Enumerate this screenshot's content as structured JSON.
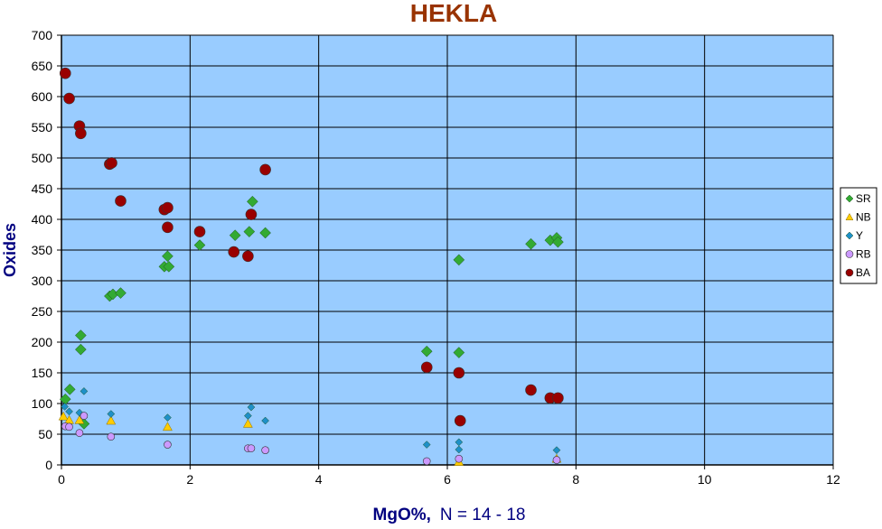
{
  "chart_data": {
    "type": "scatter",
    "title": "HEKLA",
    "xlabel_main": "MgO%,",
    "xlabel_note": "N = 14 - 18",
    "ylabel": "Oxides",
    "xlim": [
      0,
      12
    ],
    "ylim": [
      0,
      700
    ],
    "x_ticks": [
      "0",
      "2",
      "4",
      "6",
      "8",
      "10",
      "12"
    ],
    "y_ticks": [
      "0",
      "50",
      "100",
      "150",
      "200",
      "250",
      "300",
      "350",
      "400",
      "450",
      "500",
      "550",
      "600",
      "650",
      "700"
    ],
    "grid": true,
    "legend_position": "right",
    "plot_background": "#99CCFF",
    "series": [
      {
        "name": "SR",
        "marker": "diamond",
        "color": "#33AA33",
        "points": [
          [
            0.06,
            107
          ],
          [
            0.13,
            123
          ],
          [
            0.3,
            211
          ],
          [
            0.3,
            188
          ],
          [
            0.35,
            67
          ],
          [
            0.75,
            275
          ],
          [
            0.8,
            278
          ],
          [
            0.92,
            280
          ],
          [
            1.6,
            323
          ],
          [
            1.65,
            340
          ],
          [
            1.67,
            323
          ],
          [
            2.15,
            358
          ],
          [
            2.7,
            374
          ],
          [
            2.92,
            380
          ],
          [
            2.97,
            429
          ],
          [
            3.17,
            378
          ],
          [
            5.68,
            185
          ],
          [
            6.18,
            183
          ],
          [
            6.18,
            334
          ],
          [
            7.3,
            360
          ],
          [
            7.6,
            366
          ],
          [
            7.7,
            370
          ],
          [
            7.72,
            363
          ]
        ]
      },
      {
        "name": "NB",
        "marker": "triangle",
        "color": "#FFCC00",
        "points": [
          [
            0.03,
            79
          ],
          [
            0.12,
            73
          ],
          [
            0.28,
            73
          ],
          [
            0.77,
            72
          ],
          [
            1.65,
            62
          ],
          [
            2.9,
            67
          ],
          [
            6.18,
            5
          ],
          [
            7.7,
            10
          ]
        ]
      },
      {
        "name": "Y",
        "marker": "diamond",
        "color": "#1E90C8",
        "points": [
          [
            0.05,
            95
          ],
          [
            0.12,
            87
          ],
          [
            0.28,
            85
          ],
          [
            0.35,
            120
          ],
          [
            0.77,
            83
          ],
          [
            1.65,
            77
          ],
          [
            2.9,
            80
          ],
          [
            2.95,
            94
          ],
          [
            3.17,
            72
          ],
          [
            5.68,
            33
          ],
          [
            6.18,
            37
          ],
          [
            6.18,
            25
          ],
          [
            7.7,
            24
          ]
        ]
      },
      {
        "name": "RB",
        "marker": "circle",
        "color": "#CC99FF",
        "points": [
          [
            0.06,
            63
          ],
          [
            0.12,
            62
          ],
          [
            0.28,
            52
          ],
          [
            0.35,
            80
          ],
          [
            0.77,
            46
          ],
          [
            1.65,
            33
          ],
          [
            2.9,
            27
          ],
          [
            2.95,
            27
          ],
          [
            3.17,
            24
          ],
          [
            5.68,
            6
          ],
          [
            6.18,
            10
          ],
          [
            7.7,
            8
          ]
        ]
      },
      {
        "name": "BA",
        "marker": "circle",
        "color": "#990000",
        "points": [
          [
            0.06,
            638
          ],
          [
            0.12,
            597
          ],
          [
            0.28,
            552
          ],
          [
            0.3,
            540
          ],
          [
            0.75,
            490
          ],
          [
            0.78,
            492
          ],
          [
            0.92,
            430
          ],
          [
            1.6,
            416
          ],
          [
            1.65,
            419
          ],
          [
            1.65,
            387
          ],
          [
            2.15,
            380
          ],
          [
            2.68,
            347
          ],
          [
            2.9,
            340
          ],
          [
            2.95,
            408
          ],
          [
            3.17,
            481
          ],
          [
            5.68,
            159
          ],
          [
            6.18,
            150
          ],
          [
            6.2,
            72
          ],
          [
            7.3,
            122
          ],
          [
            7.6,
            109
          ],
          [
            7.72,
            109
          ]
        ]
      }
    ]
  }
}
